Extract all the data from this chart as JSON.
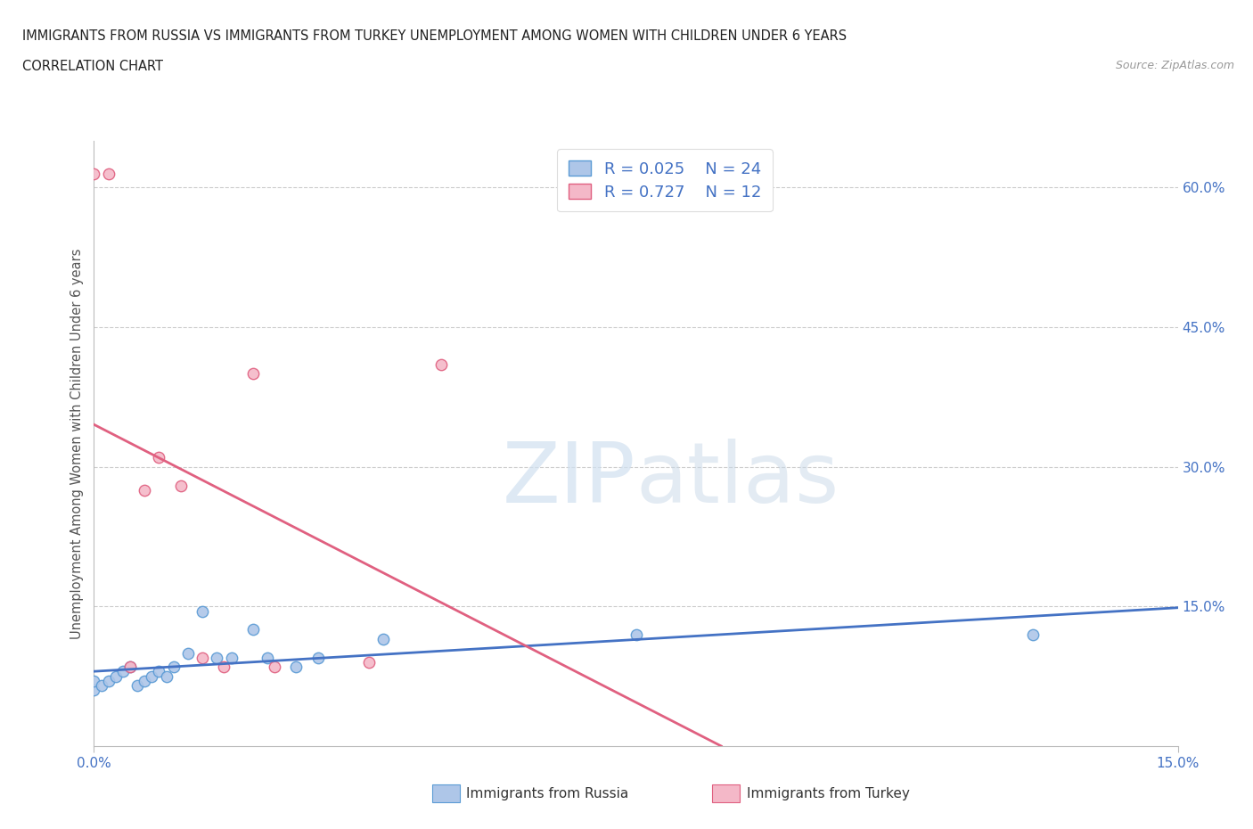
{
  "title_line1": "IMMIGRANTS FROM RUSSIA VS IMMIGRANTS FROM TURKEY UNEMPLOYMENT AMONG WOMEN WITH CHILDREN UNDER 6 YEARS",
  "title_line2": "CORRELATION CHART",
  "source": "Source: ZipAtlas.com",
  "ylabel": "Unemployment Among Women with Children Under 6 years",
  "xlim": [
    0.0,
    0.15
  ],
  "ylim": [
    0.0,
    0.65
  ],
  "xtick_labels": [
    "0.0%",
    "15.0%"
  ],
  "ytick_labels": [
    "15.0%",
    "30.0%",
    "45.0%",
    "60.0%"
  ],
  "ytick_positions": [
    0.15,
    0.3,
    0.45,
    0.6
  ],
  "russia_color": "#aec6e8",
  "russia_edge_color": "#5b9bd5",
  "turkey_color": "#f4b8c8",
  "turkey_edge_color": "#e06080",
  "russia_R": 0.025,
  "russia_N": 24,
  "turkey_R": 0.727,
  "turkey_N": 12,
  "russia_trend_color": "#4472c4",
  "turkey_trend_color": "#e06080",
  "legend_label_russia": "Immigrants from Russia",
  "legend_label_turkey": "Immigrants from Turkey",
  "russia_points_x": [
    0.0,
    0.0,
    0.001,
    0.002,
    0.003,
    0.004,
    0.005,
    0.006,
    0.007,
    0.008,
    0.009,
    0.01,
    0.011,
    0.013,
    0.015,
    0.017,
    0.019,
    0.022,
    0.024,
    0.028,
    0.031,
    0.04,
    0.075,
    0.13
  ],
  "russia_points_y": [
    0.06,
    0.07,
    0.065,
    0.07,
    0.075,
    0.08,
    0.085,
    0.065,
    0.07,
    0.075,
    0.08,
    0.075,
    0.085,
    0.1,
    0.145,
    0.095,
    0.095,
    0.125,
    0.095,
    0.085,
    0.095,
    0.115,
    0.12,
    0.12
  ],
  "turkey_points_x": [
    0.0,
    0.002,
    0.005,
    0.007,
    0.009,
    0.012,
    0.015,
    0.018,
    0.022,
    0.025,
    0.038,
    0.048
  ],
  "turkey_points_y": [
    0.615,
    0.615,
    0.085,
    0.275,
    0.31,
    0.28,
    0.095,
    0.085,
    0.4,
    0.085,
    0.09,
    0.41
  ],
  "watermark_zip": "ZIP",
  "watermark_atlas": "atlas",
  "grid_color": "#cccccc",
  "background_color": "#ffffff"
}
